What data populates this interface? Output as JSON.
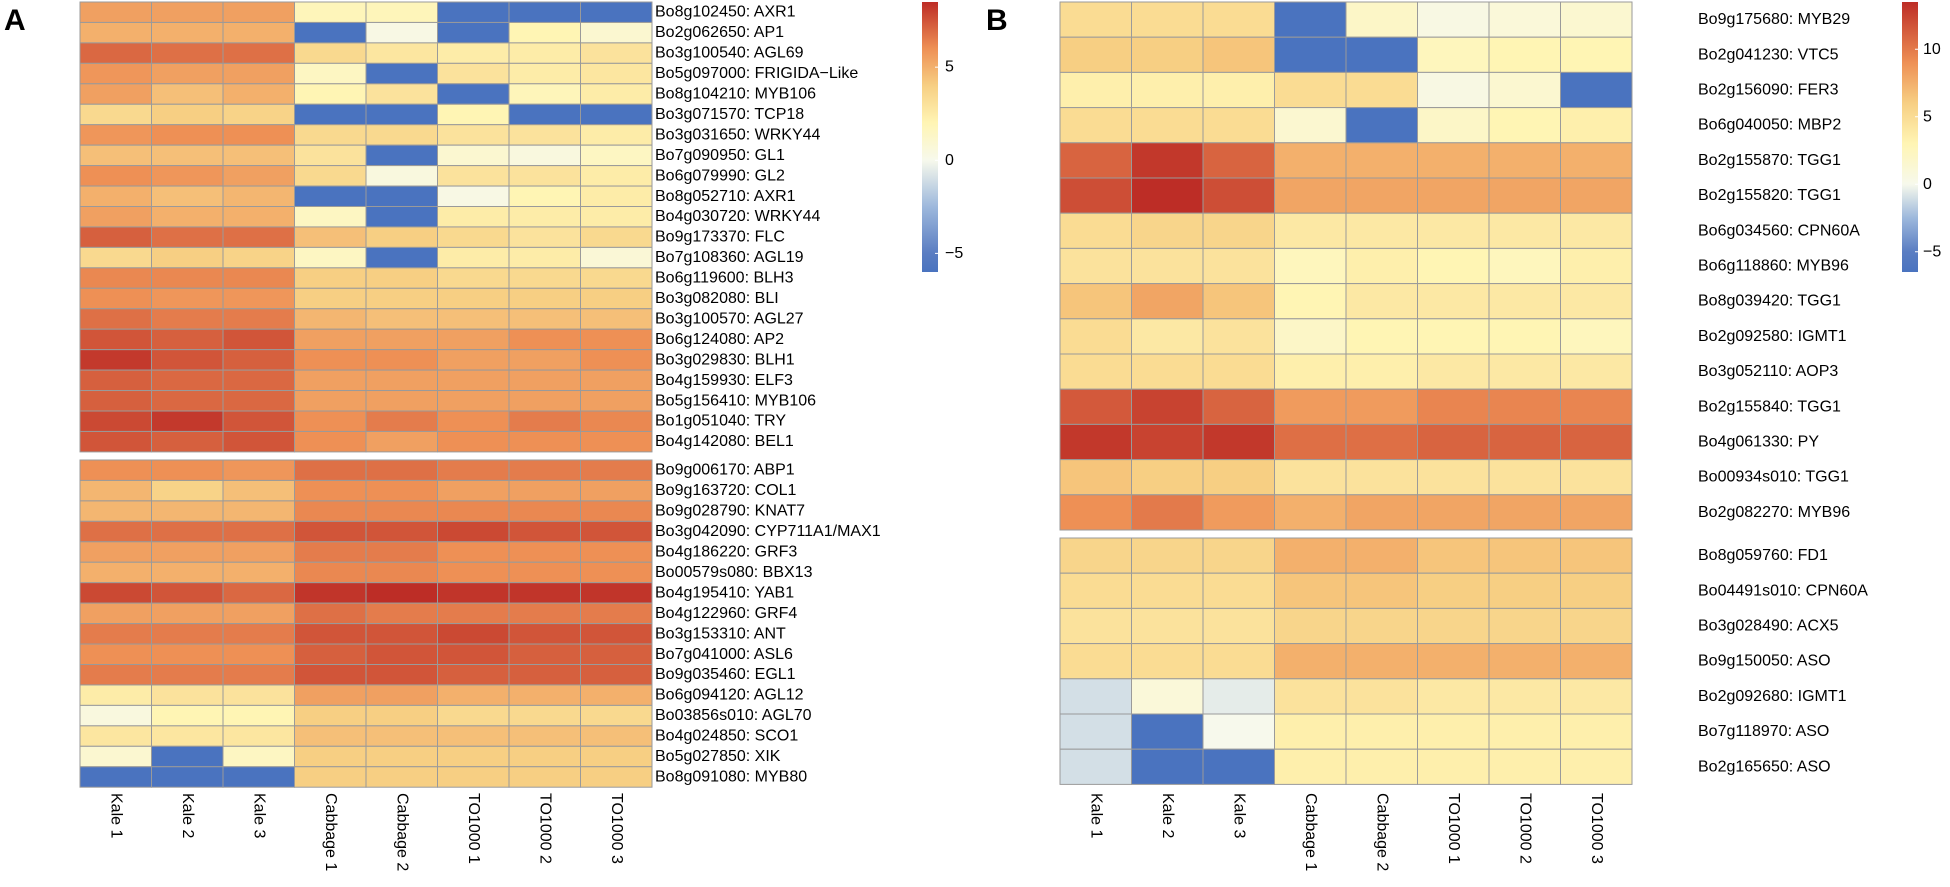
{
  "chart_data": [
    {
      "type": "heatmap",
      "panel_label": "A",
      "columns": [
        "Kale 1",
        "Kale 2",
        "Kale 3",
        "Cabbage 1",
        "Cabbage 2",
        "TO1000 1",
        "TO1000 2",
        "TO1000 3"
      ],
      "color_scale": {
        "min": -6,
        "max": 8.5,
        "ticks": [
          "5",
          "0",
          "−5"
        ],
        "tick_values": [
          5,
          0,
          -5
        ],
        "stops": [
          {
            "v": -6,
            "c": "#4a73bf"
          },
          {
            "v": -5,
            "c": "#5a7dc2"
          },
          {
            "v": -2.5,
            "c": "#9db8dc"
          },
          {
            "v": 0,
            "c": "#f7f9ec"
          },
          {
            "v": 2,
            "c": "#fff5b4"
          },
          {
            "v": 4,
            "c": "#f7cf83"
          },
          {
            "v": 6,
            "c": "#ee9055"
          },
          {
            "v": 8.5,
            "c": "#bd2d26"
          }
        ]
      },
      "groups": [
        {
          "rows": [
            {
              "label": "Bo8g102450: AXR1",
              "values": [
                5.5,
                5.5,
                5.5,
                1.8,
                1.8,
                -6,
                -6,
                -6
              ]
            },
            {
              "label": "Bo2g062650: AP1",
              "values": [
                5.0,
                5.0,
                5.0,
                -6,
                0.3,
                -6,
                2.0,
                1.0
              ]
            },
            {
              "label": "Bo3g100540: AGL69",
              "values": [
                7.0,
                6.8,
                6.8,
                3.5,
                2.8,
                2.5,
                2.5,
                3.0
              ]
            },
            {
              "label": "Bo5g097000: FRIGIDA−Like",
              "values": [
                5.8,
                5.5,
                5.5,
                1.5,
                -6,
                3.0,
                2.5,
                2.8
              ]
            },
            {
              "label": "Bo8g104210: MYB106",
              "values": [
                5.5,
                4.5,
                5.0,
                2.0,
                3.0,
                -6,
                1.8,
                2.5
              ]
            },
            {
              "label": "Bo3g071570: TCP18",
              "values": [
                3.5,
                4.0,
                3.8,
                -6,
                -6,
                2.0,
                -6,
                -6
              ]
            },
            {
              "label": "Bo3g031650: WRKY44",
              "values": [
                5.8,
                6.0,
                6.0,
                3.5,
                3.5,
                3.0,
                3.0,
                2.5
              ]
            },
            {
              "label": "Bo7g090950: GL1",
              "values": [
                4.5,
                4.5,
                4.5,
                3.0,
                -6,
                1.0,
                0.5,
                1.5
              ]
            },
            {
              "label": "Bo6g079990: GL2",
              "values": [
                6.0,
                5.8,
                5.5,
                3.5,
                0.5,
                3.0,
                3.0,
                2.5
              ]
            },
            {
              "label": "Bo8g052710: AXR1",
              "values": [
                5.0,
                4.5,
                4.8,
                -6,
                -6,
                0.3,
                2.0,
                2.5
              ]
            },
            {
              "label": "Bo4g030720: WRKY44",
              "values": [
                5.5,
                5.0,
                5.0,
                1.5,
                -6,
                2.5,
                2.5,
                2.5
              ]
            },
            {
              "label": "Bo9g173370: FLC",
              "values": [
                7.2,
                6.8,
                6.8,
                4.5,
                4.0,
                3.5,
                3.0,
                3.5
              ]
            },
            {
              "label": "Bo7g108360: AGL19",
              "values": [
                3.5,
                4.0,
                3.8,
                1.5,
                -6,
                2.5,
                2.5,
                0.8
              ]
            },
            {
              "label": "Bo6g119600: BLH3",
              "values": [
                6.2,
                6.2,
                6.2,
                4.0,
                4.0,
                3.5,
                3.5,
                3.5
              ]
            },
            {
              "label": "Bo3g082080: BLI",
              "values": [
                6.0,
                5.8,
                5.8,
                4.0,
                4.0,
                4.0,
                4.0,
                4.0
              ]
            },
            {
              "label": "Bo3g100570: AGL27",
              "values": [
                6.8,
                6.5,
                6.5,
                4.8,
                4.5,
                4.5,
                4.5,
                4.5
              ]
            },
            {
              "label": "Bo6g124080: AP2",
              "values": [
                7.5,
                7.2,
                7.5,
                5.5,
                5.5,
                5.5,
                6.0,
                6.0
              ]
            },
            {
              "label": "Bo3g029830: BLH1",
              "values": [
                8.2,
                7.5,
                7.2,
                6.0,
                6.0,
                5.5,
                5.5,
                6.0
              ]
            },
            {
              "label": "Bo4g159930: ELF3",
              "values": [
                7.2,
                7.0,
                7.0,
                5.5,
                5.5,
                5.5,
                5.5,
                5.5
              ]
            },
            {
              "label": "Bo5g156410: MYB106",
              "values": [
                7.2,
                7.0,
                7.0,
                5.5,
                5.5,
                5.5,
                5.5,
                5.5
              ]
            },
            {
              "label": "Bo1g051040: TRY",
              "values": [
                7.8,
                8.2,
                7.5,
                6.0,
                6.5,
                6.0,
                6.5,
                6.2
              ]
            },
            {
              "label": "Bo4g142080: BEL1",
              "values": [
                7.5,
                7.2,
                7.5,
                6.0,
                5.5,
                6.0,
                6.0,
                6.0
              ]
            }
          ]
        },
        {
          "rows": [
            {
              "label": "Bo9g006170: ABP1",
              "values": [
                6.0,
                6.0,
                5.8,
                6.8,
                6.8,
                6.5,
                6.5,
                6.5
              ]
            },
            {
              "label": "Bo9g163720: COL1",
              "values": [
                4.8,
                3.8,
                4.5,
                6.0,
                6.0,
                5.5,
                5.5,
                5.5
              ]
            },
            {
              "label": "Bo9g028790: KNAT7",
              "values": [
                4.8,
                4.8,
                4.8,
                6.2,
                6.2,
                6.2,
                6.2,
                6.2
              ]
            },
            {
              "label": "Bo3g042090: CYP711A1/MAX1",
              "values": [
                6.8,
                6.8,
                6.8,
                7.5,
                7.5,
                7.8,
                7.5,
                7.5
              ]
            },
            {
              "label": "Bo4g186220: GRF3",
              "values": [
                5.5,
                5.5,
                5.5,
                6.5,
                6.5,
                6.0,
                6.0,
                6.0
              ]
            },
            {
              "label": "Bo00579s080: BBX13",
              "values": [
                5.0,
                5.0,
                5.0,
                6.2,
                6.2,
                6.0,
                6.0,
                6.0
              ]
            },
            {
              "label": "Bo4g195410: YAB1",
              "values": [
                7.8,
                7.5,
                7.0,
                8.3,
                8.5,
                8.3,
                8.3,
                8.3
              ]
            },
            {
              "label": "Bo4g122960: GRF4",
              "values": [
                5.5,
                5.5,
                5.5,
                6.8,
                6.5,
                6.5,
                6.5,
                6.5
              ]
            },
            {
              "label": "Bo3g153310: ANT",
              "values": [
                6.5,
                6.5,
                6.5,
                7.5,
                7.5,
                7.8,
                7.5,
                7.5
              ]
            },
            {
              "label": "Bo7g041000: ASL6",
              "values": [
                6.0,
                6.0,
                6.0,
                7.2,
                7.5,
                7.5,
                7.2,
                7.2
              ]
            },
            {
              "label": "Bo9g035460: EGL1",
              "values": [
                6.5,
                6.5,
                6.5,
                7.5,
                7.5,
                7.2,
                7.2,
                7.2
              ]
            },
            {
              "label": "Bo6g094120: AGL12",
              "values": [
                2.5,
                3.0,
                3.0,
                5.5,
                5.5,
                5.0,
                5.0,
                5.0
              ]
            },
            {
              "label": "Bo03856s010: AGL70",
              "values": [
                0.5,
                2.0,
                2.0,
                4.0,
                4.0,
                3.5,
                3.5,
                3.5
              ]
            },
            {
              "label": "Bo4g024850: SCO1",
              "values": [
                2.8,
                2.8,
                2.8,
                4.5,
                4.5,
                4.5,
                4.5,
                4.5
              ]
            },
            {
              "label": "Bo5g027850: XIK",
              "values": [
                1.0,
                -6,
                1.5,
                4.0,
                4.0,
                4.0,
                4.0,
                4.0
              ]
            },
            {
              "label": "Bo8g091080: MYB80",
              "values": [
                -6,
                -6,
                -6,
                4.0,
                4.0,
                4.0,
                4.0,
                4.0
              ]
            }
          ]
        }
      ]
    },
    {
      "type": "heatmap",
      "panel_label": "B",
      "columns": [
        "Kale 1",
        "Kale 2",
        "Kale 3",
        "Cabbage 1",
        "Cabbage 2",
        "TO1000 1",
        "TO1000 2",
        "TO1000 3"
      ],
      "color_scale": {
        "min": -6.5,
        "max": 13.5,
        "ticks": [
          "10",
          "5",
          "0",
          "−5"
        ],
        "tick_values": [
          10,
          5,
          0,
          -5
        ],
        "stops": [
          {
            "v": -6.5,
            "c": "#4a73bf"
          },
          {
            "v": -5,
            "c": "#5a7dc2"
          },
          {
            "v": -2.5,
            "c": "#9db8dc"
          },
          {
            "v": 0,
            "c": "#f7f9ec"
          },
          {
            "v": 3,
            "c": "#fff5b4"
          },
          {
            "v": 6,
            "c": "#f7cf83"
          },
          {
            "v": 9,
            "c": "#ee9055"
          },
          {
            "v": 13.5,
            "c": "#bd2d26"
          }
        ]
      },
      "groups": [
        {
          "rows": [
            {
              "label": "Bo9g175680: MYB29",
              "values": [
                5.0,
                5.0,
                5.0,
                -6.5,
                2.0,
                0.5,
                1.0,
                1.5
              ]
            },
            {
              "label": "Bo2g041230: VTC5",
              "values": [
                6.0,
                6.0,
                6.5,
                -6.5,
                -6.5,
                2.5,
                3.0,
                3.0
              ]
            },
            {
              "label": "Bo2g156090: FER3",
              "values": [
                3.5,
                3.5,
                3.5,
                5.0,
                5.0,
                0.5,
                1.5,
                -6.5
              ]
            },
            {
              "label": "Bo6g040050: MBP2",
              "values": [
                5.0,
                5.0,
                5.0,
                1.5,
                -6.5,
                2.0,
                3.0,
                3.5
              ]
            },
            {
              "label": "Bo2g155870: TGG1",
              "values": [
                11.0,
                13.0,
                11.0,
                7.5,
                7.5,
                7.5,
                7.5,
                7.5
              ]
            },
            {
              "label": "Bo2g155820: TGG1",
              "values": [
                12.0,
                13.5,
                12.0,
                8.0,
                8.0,
                8.0,
                8.0,
                8.0
              ]
            },
            {
              "label": "Bo6g034560: CPN60A",
              "values": [
                5.0,
                5.5,
                5.5,
                4.0,
                4.0,
                4.0,
                4.0,
                4.0
              ]
            },
            {
              "label": "Bo6g118860: MYB96",
              "values": [
                4.5,
                4.5,
                4.5,
                2.5,
                3.5,
                3.0,
                2.5,
                3.5
              ]
            },
            {
              "label": "Bo8g039420: TGG1",
              "values": [
                6.5,
                8.0,
                6.5,
                3.0,
                4.0,
                4.0,
                4.0,
                4.0
              ]
            },
            {
              "label": "Bo2g092580: IGMT1",
              "values": [
                5.0,
                4.0,
                4.5,
                2.0,
                3.0,
                3.0,
                3.0,
                2.5
              ]
            },
            {
              "label": "Bo3g052110: AOP3",
              "values": [
                5.0,
                5.0,
                5.0,
                3.5,
                3.5,
                4.0,
                4.0,
                4.0
              ]
            },
            {
              "label": "Bo2g155840: TGG1",
              "values": [
                11.5,
                12.5,
                11.0,
                8.5,
                8.5,
                9.5,
                9.5,
                9.5
              ]
            },
            {
              "label": "Bo4g061330: PY",
              "values": [
                13.0,
                12.5,
                13.0,
                10.5,
                10.5,
                11.0,
                11.0,
                11.0
              ]
            },
            {
              "label": "Bo00934s010: TGG1",
              "values": [
                6.5,
                6.0,
                6.0,
                4.5,
                4.5,
                4.5,
                4.5,
                4.5
              ]
            },
            {
              "label": "Bo2g082270: MYB96",
              "values": [
                9.0,
                10.0,
                8.5,
                7.5,
                8.0,
                8.0,
                8.0,
                8.0
              ]
            }
          ]
        },
        {
          "rows": [
            {
              "label": "Bo8g059760: FD1",
              "values": [
                5.5,
                5.5,
                5.5,
                7.5,
                7.5,
                6.5,
                6.5,
                6.5
              ]
            },
            {
              "label": "Bo04491s010: CPN60A",
              "values": [
                5.0,
                5.0,
                5.0,
                6.5,
                6.5,
                6.0,
                6.0,
                6.0
              ]
            },
            {
              "label": "Bo3g028490: ACX5",
              "values": [
                4.5,
                4.5,
                4.5,
                5.5,
                5.5,
                5.5,
                5.5,
                5.5
              ]
            },
            {
              "label": "Bo9g150050: ASO",
              "values": [
                5.0,
                5.0,
                5.0,
                7.5,
                7.5,
                7.5,
                7.5,
                7.5
              ]
            },
            {
              "label": "Bo2g092680: IGMT1",
              "values": [
                -1.0,
                1.0,
                -0.5,
                4.5,
                4.5,
                4.0,
                4.0,
                4.0
              ]
            },
            {
              "label": "Bo7g118970: ASO",
              "values": [
                -1.0,
                -6.5,
                0.0,
                3.5,
                3.5,
                3.5,
                3.5,
                3.5
              ]
            },
            {
              "label": "Bo2g165650: ASO",
              "values": [
                -1.0,
                -6.5,
                -6.5,
                3.5,
                3.5,
                3.5,
                3.5,
                3.5
              ]
            }
          ]
        }
      ]
    }
  ]
}
